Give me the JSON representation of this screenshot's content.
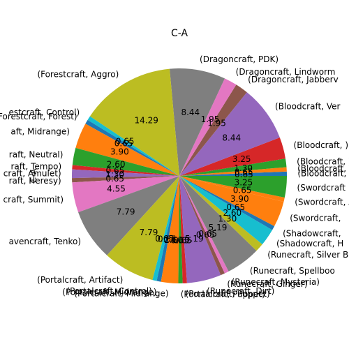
{
  "chart_data": {
    "type": "pie",
    "title": "C-A",
    "ylabel": "C-A",
    "autopct": "%.2f",
    "start_angle_deg": 0,
    "direction": "counterclockwise",
    "palette": [
      "#1f77b4",
      "#ff7f0e",
      "#2ca02c",
      "#d62728",
      "#9467bd",
      "#8c564b",
      "#e377c2",
      "#7f7f7f",
      "#bcbd22",
      "#17becf"
    ],
    "slices": [
      {
        "label": "(Bloodcraft, )",
        "value": 0.65,
        "color": "#1f77b4"
      },
      {
        "label": "(Bloodcraft, )",
        "value": 0.65,
        "color": "#ff7f0e"
      },
      {
        "label": "(Bloodcraft, )",
        "value": 1.3,
        "color": "#2ca02c"
      },
      {
        "label": "(Bloodcraft, )",
        "value": 3.25,
        "color": "#d62728"
      },
      {
        "label": "(Bloodcraft, Ver",
        "value": 8.44,
        "color": "#9467bd"
      },
      {
        "label": "(Dragoncraft, Jabberv",
        "value": 1.95,
        "color": "#8c564b"
      },
      {
        "label": "(Dragoncraft, Lindworm",
        "value": 1.95,
        "color": "#e377c2"
      },
      {
        "label": "(Dragoncraft, PDK)",
        "value": 8.44,
        "color": "#7f7f7f"
      },
      {
        "label": "(Forestcraft, Aggro)",
        "value": 14.29,
        "color": "#bcbd22"
      },
      {
        "label": "estcraft, Control)",
        "value": 0.65,
        "color": "#17becf"
      },
      {
        "label": "(Forestcraft, Forest)",
        "value": 0.65,
        "color": "#1f77b4"
      },
      {
        "label": "aft, Midrange)",
        "value": 3.9,
        "color": "#ff7f0e"
      },
      {
        "label": "raft, Neutral)",
        "value": 2.6,
        "color": "#2ca02c"
      },
      {
        "label": "raft, Tempo)",
        "value": 0.65,
        "color": "#d62728"
      },
      {
        "label": "craft, Amulet)",
        "value": 1.3,
        "color": "#9467bd"
      },
      {
        "label": "raft, Heresy)",
        "value": 0.65,
        "color": "#8c564b"
      },
      {
        "label": "craft, Summit)",
        "value": 4.55,
        "color": "#e377c2"
      },
      {
        "label": "avencraft, Tenko)",
        "value": 7.79,
        "color": "#7f7f7f"
      },
      {
        "label": "(Portalcraft, Artifact)",
        "value": 7.79,
        "color": "#bcbd22"
      },
      {
        "label": "(Portalcraft, Control)",
        "value": 0.65,
        "color": "#17becf"
      },
      {
        "label": "(Portalcraft, Midrange)",
        "value": 0.65,
        "color": "#1f77b4"
      },
      {
        "label": "(Portalcraft, Midrange)",
        "value": 2.6,
        "color": "#ff7f0e"
      },
      {
        "label": "(Portalcraft, Puppet)",
        "value": 0.65,
        "color": "#2ca02c"
      },
      {
        "label": "(Portalcraft, Puppet)",
        "value": 0.65,
        "color": "#d62728"
      },
      {
        "label": "(Runecraft, Dirt)",
        "value": 5.19,
        "color": "#9467bd"
      },
      {
        "label": "(Runecraft, Ginger)",
        "value": 0.65,
        "color": "#8c564b"
      },
      {
        "label": "(Runecraft, Mysteria)",
        "value": 0.65,
        "color": "#e377c2"
      },
      {
        "label": "(Runecraft, Spellboo",
        "value": 5.19,
        "color": "#7f7f7f"
      },
      {
        "label": "(Runecraft, Silver Blade",
        "value": 1.3,
        "color": "#bcbd22"
      },
      {
        "label": "(Shadowcraft, H",
        "value": 2.6,
        "color": "#17becf"
      },
      {
        "label": "(Shadowcraft, ",
        "value": 0.65,
        "color": "#1f77b4"
      },
      {
        "label": "(Swordcraft, ",
        "value": 3.9,
        "color": "#ff7f0e"
      },
      {
        "label": "(Swordcraft, A",
        "value": 0.65,
        "color": "#ff7f0e"
      },
      {
        "label": "(Swordcraft",
        "value": 3.25,
        "color": "#2ca02c"
      }
    ]
  }
}
